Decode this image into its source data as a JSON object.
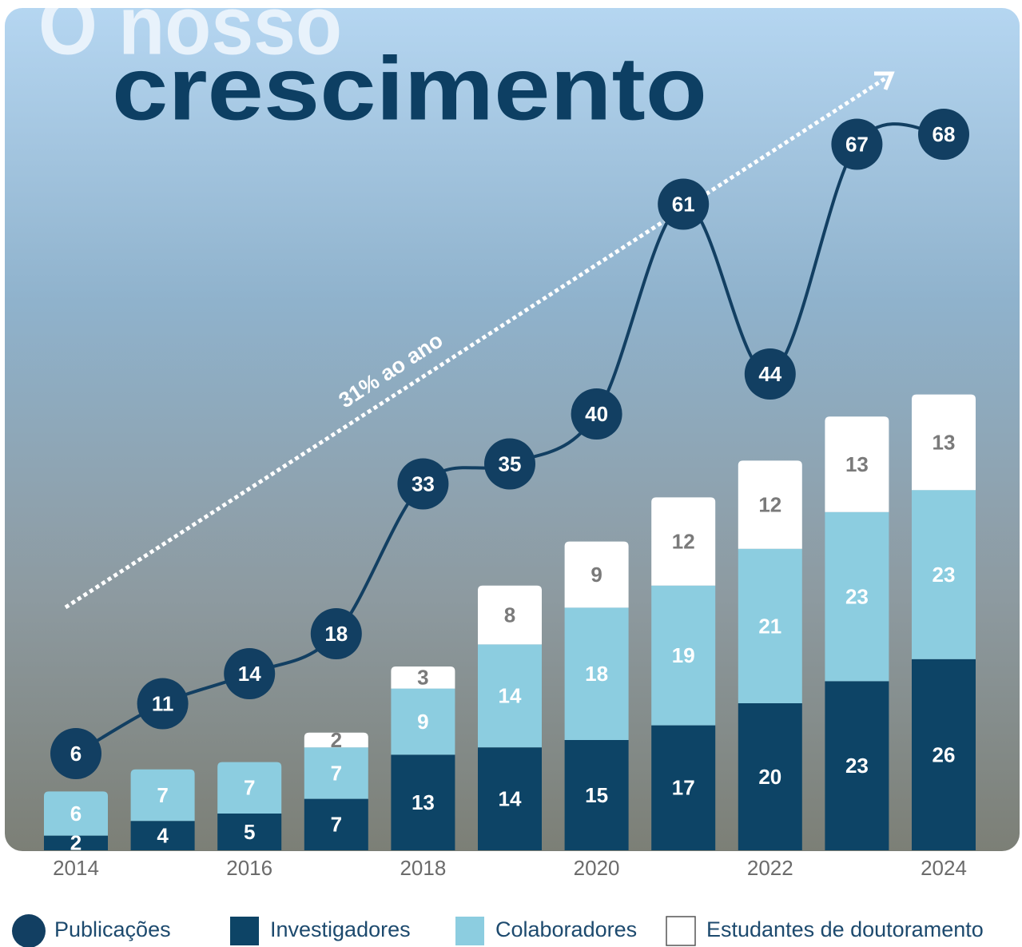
{
  "chart_data": {
    "type": "bar",
    "title_lines": [
      "O nosso",
      "crescimento"
    ],
    "annotation": "31% ao ano",
    "categories": [
      "2014",
      null,
      "2016",
      null,
      "2018",
      null,
      "2020",
      null,
      "2022",
      null,
      "2024"
    ],
    "series": [
      {
        "name": "Publicações",
        "type": "line",
        "color": "#123f62",
        "values": [
          6,
          11,
          14,
          18,
          33,
          35,
          40,
          61,
          44,
          67,
          68
        ]
      },
      {
        "name": "Investigadores",
        "type": "bar",
        "color": "#0d4466",
        "values": [
          2,
          4,
          5,
          7,
          13,
          14,
          15,
          17,
          20,
          23,
          26
        ]
      },
      {
        "name": "Colaboradores",
        "type": "bar",
        "color": "#8ccde0",
        "values": [
          6,
          7,
          7,
          7,
          9,
          14,
          18,
          19,
          21,
          23,
          23
        ]
      },
      {
        "name": "Estudantes de doutoramento",
        "type": "bar",
        "color": "#ffffff",
        "values": [
          null,
          null,
          null,
          2,
          3,
          8,
          9,
          12,
          12,
          13,
          13
        ]
      }
    ]
  }
}
